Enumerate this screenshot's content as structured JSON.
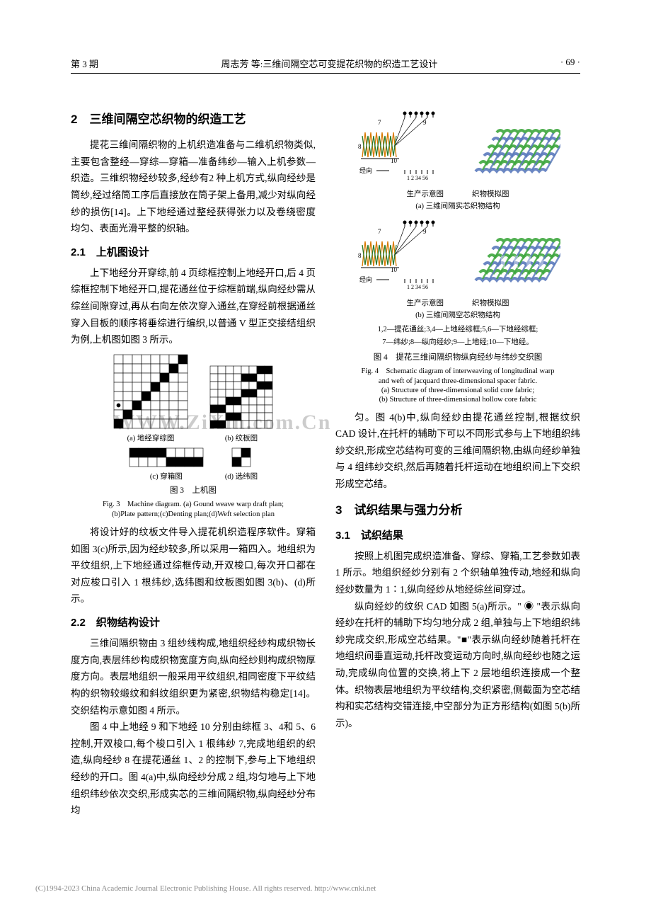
{
  "header": {
    "issue": "第 3 期",
    "title": "周志芳  等:三维间隔空芯可变提花织物的织造工艺设计",
    "page": "· 69 ·"
  },
  "s2": {
    "heading": "2　三维间隔空芯织物的织造工艺",
    "p1": "提花三维间隔织物的上机织造准备与二维机织物类似,主要包含整经—穿综—穿箱—准备纬纱—输入上机参数—织造。三维织物经纱较多,经纱有2 种上机方式,纵向经纱是筒纱,经过络筒工序后直接放在筒子架上备用,减少对纵向经纱的损伤[14]。上下地经通过整经获得张力以及卷绕密度均匀、表面光滑平整的织轴。"
  },
  "s21": {
    "heading": "2.1　上机图设计",
    "p1": "上下地经分开穿综,前 4 页综框控制上地经开口,后 4 页综框控制下地经开口,提花通丝位于综框前端,纵向经纱需从综丝间隙穿过,再从右向左依次穿入通丝,在穿经前根据通丝穿入目板的顺序将垂综进行编织,以普通 V 型正交接结组织为例,上机图如图 3 所示。"
  },
  "fig3": {
    "a": "(a) 地经穿综图",
    "b": "(b) 纹板图",
    "c": "(c) 穿箱图",
    "d": "(d) 选纬图",
    "cn": "图 3　上机图",
    "en1": "Fig. 3　Machine diagram. (a) Gound weave warp draft plan;",
    "en2": "(b)Plate pattern;(c)Denting plan;(d)Weft selection plan",
    "grid_a": {
      "rows": 8,
      "cols": 8,
      "black": [
        [
          0,
          7
        ],
        [
          1,
          6
        ],
        [
          2,
          5
        ],
        [
          3,
          4
        ],
        [
          4,
          3
        ],
        [
          5,
          2
        ],
        [
          6,
          1
        ],
        [
          7,
          0
        ]
      ],
      "dot": [
        5,
        0
      ]
    },
    "grid_b": {
      "rows": 8,
      "cols": 8,
      "black": [
        [
          0,
          7
        ],
        [
          0,
          6
        ],
        [
          1,
          5
        ],
        [
          1,
          4
        ],
        [
          2,
          7
        ],
        [
          2,
          6
        ],
        [
          3,
          5
        ],
        [
          3,
          4
        ],
        [
          4,
          3
        ],
        [
          4,
          2
        ],
        [
          5,
          1
        ],
        [
          5,
          0
        ],
        [
          6,
          3
        ],
        [
          6,
          2
        ],
        [
          7,
          1
        ],
        [
          7,
          0
        ]
      ]
    },
    "grid_c": {
      "rows": 2,
      "cols": 8,
      "black": [
        [
          0,
          0
        ],
        [
          0,
          1
        ],
        [
          0,
          2
        ],
        [
          0,
          3
        ],
        [
          1,
          4
        ],
        [
          1,
          5
        ],
        [
          1,
          6
        ],
        [
          1,
          7
        ]
      ]
    },
    "grid_d": {
      "rows": 2,
      "cols": 2,
      "black": [
        [
          0,
          1
        ],
        [
          1,
          0
        ]
      ]
    }
  },
  "s21b": {
    "p2": "将设计好的纹板文件导入提花机织造程序软件。穿箱如图 3(c)所示,因为经纱较多,所以采用一箱四入。地组织为平纹组织,上下地经通过综框传动,开双梭口,每次开口都在对应梭口引入 1 根纬纱,选纬图和纹板图如图 3(b)、(d)所示。"
  },
  "s22": {
    "heading": "2.2　织物结构设计",
    "p1": "三维间隔织物由 3 组纱线构成,地组织经纱构成织物长度方向,表层纬纱构成织物宽度方向,纵向经纱则构成织物厚度方向。表层地组织一般采用平纹组织,相同密度下平纹结构的织物较缎纹和斜纹组织更为紧密,织物结构稳定[14]。交织结构示意如图 4 所示。",
    "p2": "图 4 中上地经 9 和下地经 10 分别由综框 3、4和 5、6 控制,开双梭口,每个梭口引入 1 根纬纱 7,完成地组织的织造,纵向经纱 8 在提花通丝 1、2 的控制下,参与上下地组织经纱的开口。图 4(a)中,纵向经纱分成 2 组,均匀地与上下地组织纬纱依次交织,形成实芯的三维间隔织物,纵向经纱分布均"
  },
  "fig4": {
    "label_left": "生产示意图",
    "label_right": "织物模拟图",
    "sub_a": "(a) 三维间隔实芯织物结构",
    "sub_b": "(b) 三维间隔空芯织物结构",
    "jing": "经向",
    "nums": "1 2 34 56",
    "n7": "7",
    "n8": "8",
    "n9": "9",
    "n10": "10",
    "legend1": "1,2—提花通丝;3,4—上地经综框;5,6—下地经综框;",
    "legend2": "7—纬纱;8—纵向经纱;9—上地经;10—下地经。",
    "cn": "图 4　提花三维间隔织物纵向经纱与纬纱交织图",
    "en1": "Fig. 4　Schematic diagram of interweaving of longitudinal warp",
    "en2": "and weft of jacquard three-dimensional spacer fabric.",
    "en3": "(a) Structure of three-dimensional solid core fabric;",
    "en4": "(b) Structure of three-dimensional hollow core fabric",
    "colors": {
      "yarn1": "#d97a00",
      "yarn2": "#2a7a2a",
      "mesh1": "#3da63d",
      "mesh2": "#5b7abd"
    }
  },
  "col2a": {
    "p1": "匀。图 4(b)中,纵向经纱由提花通丝控制,根据纹织 CAD 设计,在托杆的辅助下可以不同形式参与上下地组织纬纱交织,形成空芯结构可变的三维间隔织物,由纵向经纱单独与 4 组纬纱交织,然后再随着托杆运动在地组织间上下交织形成空芯结。"
  },
  "s3": {
    "heading": "3　试织结果与强力分析"
  },
  "s31": {
    "heading": "3.1　试织结果",
    "p1": "按照上机图完成织造准备、穿综、穿箱,工艺参数如表 1 所示。地组织经纱分别有 2 个织轴单独传动,地经和纵向经纱数量为 1∶1,纵向经纱从地经综丝间穿过。",
    "p2": "纵向经纱的纹织 CAD 如图 5(a)所示。\" ◉ \"表示纵向经纱在托杆的辅助下均匀地分成 2 组,单独与上下地组织纬纱完成交织,形成空芯结果。\"■\"表示纵向经纱随着托杆在地组织间垂直运动,托杆改变运动方向时,纵向经纱也随之运动,完成纵向位置的交换,将上下 2 层地组织连接成一个整体。织物表层地组织为平纹结构,交织紧密,侧截面为空芯结构和实芯结构交错连接,中空部分为正方形结构(如图 5(b)所示)。"
  },
  "watermark": "WWW.ZiXin.com.Cn",
  "footer": "(C)1994-2023 China Academic Journal Electronic Publishing House. All rights reserved.    http://www.cnki.net"
}
